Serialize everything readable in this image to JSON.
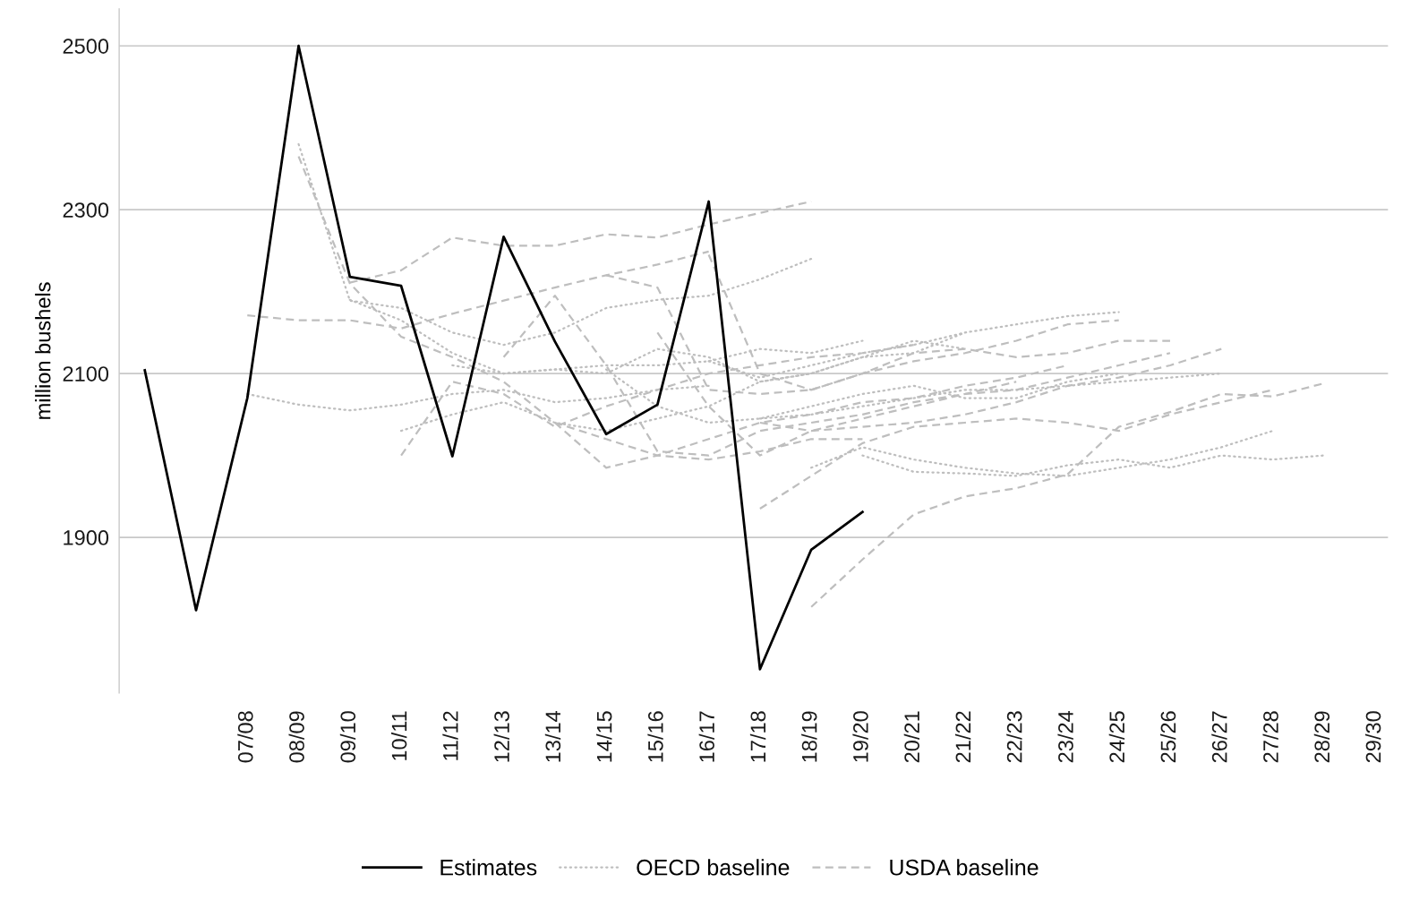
{
  "chart_data": {
    "type": "line",
    "ylabel": "million bushels",
    "categories": [
      null,
      null,
      "07/08",
      "08/09",
      "09/10",
      "10/11",
      "11/12",
      "12/13",
      "13/14",
      "14/15",
      "15/16",
      "16/17",
      "17/18",
      "18/19",
      "19/20",
      "20/21",
      "21/22",
      "22/23",
      "23/24",
      "24/25",
      "25/26",
      "26/27",
      "27/28",
      "28/29",
      "29/30"
    ],
    "ylim": [
      1710,
      2545
    ],
    "yticks": [
      1900,
      2100,
      2300,
      2500
    ],
    "grid": "y",
    "legend": "bottom",
    "series": [
      {
        "name": "OECD baseline",
        "color": "#bebebe",
        "line_style": "dotted",
        "values": [
          null,
          null,
          2075,
          2062,
          2055,
          2062,
          2075,
          2080,
          2065,
          2070,
          2080,
          2085,
          null,
          null,
          null,
          null,
          null,
          null,
          null,
          null,
          null,
          null,
          null,
          null,
          null
        ]
      },
      {
        "color": "#bebebe",
        "line_style": "dotted",
        "values": [
          null,
          null,
          null,
          2380,
          2189,
          2180,
          2150,
          2135,
          2150,
          2180,
          2190,
          2195,
          2215,
          2240,
          null,
          null,
          null,
          null,
          null,
          null,
          null,
          null,
          null,
          null,
          null
        ]
      },
      {
        "name": "USDA baseline",
        "color": "#bebebe",
        "line_style": "dashed",
        "values": [
          null,
          null,
          2171,
          2165,
          2165,
          2155,
          2173,
          2189,
          2205,
          2220,
          2233,
          2249,
          null,
          null,
          null,
          null,
          null,
          null,
          null,
          null,
          null,
          null,
          null,
          null,
          null
        ]
      },
      {
        "color": "#bebebe",
        "line_style": "dashed",
        "values": [
          null,
          null,
          null,
          null,
          2211,
          2226,
          2266,
          2256,
          2256,
          2270,
          2266,
          2282,
          2296,
          2310,
          null,
          null,
          null,
          null,
          null,
          null,
          null,
          null,
          null,
          null,
          null
        ]
      },
      {
        "color": "#bebebe",
        "line_style": "dashed",
        "values": [
          null,
          null,
          null,
          2365,
          2210,
          2145,
          2120,
          2090,
          2040,
          2020,
          2000,
          1995,
          2005,
          2020,
          2020,
          null,
          null,
          null,
          null,
          null,
          null,
          null,
          null,
          null,
          null
        ]
      },
      {
        "color": "#bebebe",
        "line_style": "dotted",
        "values": [
          null,
          null,
          null,
          null,
          2190,
          2165,
          2125,
          2100,
          2105,
          2110,
          2110,
          2115,
          2130,
          2125,
          2140,
          null,
          null,
          null,
          null,
          null,
          null,
          null,
          null,
          null,
          null
        ]
      },
      {
        "color": "#bebebe",
        "line_style": "dashed",
        "values": [
          null,
          null,
          null,
          null,
          null,
          2000,
          2090,
          2075,
          2035,
          2060,
          2080,
          2100,
          2110,
          2120,
          2125,
          2135,
          null,
          null,
          null,
          null,
          null,
          null,
          null,
          null,
          null
        ]
      },
      {
        "color": "#bebebe",
        "line_style": "dotted",
        "values": [
          null,
          null,
          null,
          null,
          null,
          2030,
          2050,
          2065,
          2040,
          2030,
          2045,
          2060,
          2090,
          2100,
          2120,
          2140,
          2130,
          null,
          null,
          null,
          null,
          null,
          null,
          null,
          null
        ]
      },
      {
        "color": "#bebebe",
        "line_style": "dashed",
        "values": [
          null,
          null,
          null,
          null,
          null,
          null,
          null,
          2120,
          2195,
          2110,
          2005,
          2000,
          2030,
          2040,
          2050,
          2065,
          2075,
          2090,
          null,
          null,
          null,
          null,
          null,
          null,
          null
        ]
      },
      {
        "color": "#bebebe",
        "line_style": "dotted",
        "values": [
          null,
          null,
          null,
          null,
          null,
          null,
          2110,
          2100,
          2105,
          2100,
          2130,
          2120,
          2090,
          2100,
          2120,
          2125,
          2150,
          null,
          null,
          null,
          null,
          null,
          null,
          null,
          null
        ]
      },
      {
        "color": "#bebebe",
        "line_style": "dashed",
        "values": [
          null,
          null,
          null,
          null,
          null,
          null,
          null,
          null,
          2040,
          1985,
          2000,
          2020,
          2040,
          2050,
          2065,
          2070,
          2085,
          2095,
          2110,
          null,
          null,
          null,
          null,
          null,
          null
        ]
      },
      {
        "color": "#bebebe",
        "line_style": "dotted",
        "values": [
          null,
          null,
          null,
          null,
          null,
          null,
          null,
          null,
          null,
          2105,
          2060,
          2040,
          2045,
          2060,
          2075,
          2085,
          2070,
          2070,
          2090,
          2100,
          null,
          null,
          null,
          null,
          null
        ]
      },
      {
        "color": "#bebebe",
        "line_style": "dashed",
        "values": [
          null,
          null,
          null,
          null,
          null,
          null,
          null,
          null,
          null,
          2220,
          2205,
          2080,
          2075,
          2080,
          2100,
          2115,
          2125,
          2140,
          2160,
          2165,
          null,
          null,
          null,
          null,
          null
        ]
      },
      {
        "color": "#bebebe",
        "line_style": "dashed",
        "values": [
          null,
          null,
          null,
          null,
          null,
          null,
          null,
          null,
          null,
          null,
          2150,
          2060,
          2000,
          2030,
          2045,
          2060,
          2075,
          2080,
          2095,
          2110,
          2125,
          null,
          null,
          null,
          null
        ]
      },
      {
        "color": "#bebebe",
        "line_style": "dotted",
        "values": [
          null,
          null,
          null,
          null,
          null,
          null,
          null,
          null,
          null,
          null,
          null,
          2115,
          2095,
          2110,
          2125,
          2135,
          2150,
          2160,
          2170,
          2175,
          null,
          null,
          null,
          null,
          null
        ]
      },
      {
        "color": "#bebebe",
        "line_style": "dashed",
        "values": [
          null,
          null,
          null,
          null,
          null,
          null,
          null,
          null,
          null,
          null,
          null,
          2245,
          2100,
          2080,
          2100,
          2125,
          2130,
          2120,
          2125,
          2140,
          2140,
          null,
          null,
          null,
          null
        ]
      },
      {
        "color": "#bebebe",
        "line_style": "dotted",
        "values": [
          null,
          null,
          null,
          null,
          null,
          null,
          null,
          null,
          null,
          null,
          null,
          null,
          2045,
          2050,
          2060,
          2070,
          2080,
          2080,
          2085,
          2090,
          2095,
          2100,
          null,
          null,
          null
        ]
      },
      {
        "color": "#bebebe",
        "line_style": "dashed",
        "values": [
          null,
          null,
          null,
          null,
          null,
          null,
          null,
          null,
          null,
          null,
          null,
          null,
          2040,
          2030,
          2035,
          2040,
          2050,
          2065,
          2085,
          2095,
          2110,
          2130,
          null,
          null,
          null
        ]
      },
      {
        "color": "#bebebe",
        "line_style": "dashed",
        "values": [
          null,
          null,
          null,
          null,
          null,
          null,
          null,
          null,
          null,
          null,
          null,
          null,
          1935,
          1975,
          2015,
          2035,
          2040,
          2045,
          2040,
          2030,
          2050,
          2065,
          2080,
          null,
          null
        ]
      },
      {
        "color": "#bebebe",
        "line_style": "dashed",
        "values": [
          null,
          null,
          null,
          null,
          null,
          null,
          null,
          null,
          null,
          null,
          null,
          null,
          null,
          1815,
          1873,
          1928,
          1950,
          1960,
          1977,
          2035,
          2053,
          2075,
          2072,
          2088,
          null
        ]
      },
      {
        "color": "#bebebe",
        "line_style": "dotted",
        "values": [
          null,
          null,
          null,
          null,
          null,
          null,
          null,
          null,
          null,
          null,
          null,
          null,
          null,
          1985,
          2010,
          1995,
          1985,
          1978,
          1975,
          1985,
          1995,
          2010,
          2030,
          null,
          null
        ]
      },
      {
        "color": "#bebebe",
        "line_style": "dotted",
        "values": [
          null,
          null,
          null,
          null,
          null,
          null,
          null,
          null,
          null,
          null,
          null,
          null,
          null,
          null,
          2000,
          1980,
          1978,
          1975,
          1988,
          1995,
          1985,
          2000,
          1995,
          2000,
          null
        ]
      },
      {
        "name": "Estimates",
        "color": "#000000",
        "line_style": "solid",
        "values": [
          2104,
          1811,
          2070,
          2500,
          2218,
          2207,
          1999,
          2267,
          2139,
          2026,
          2062,
          2310,
          1739,
          1885,
          1931,
          null,
          null,
          null,
          null,
          null,
          null,
          null,
          null,
          null,
          null
        ]
      }
    ]
  }
}
